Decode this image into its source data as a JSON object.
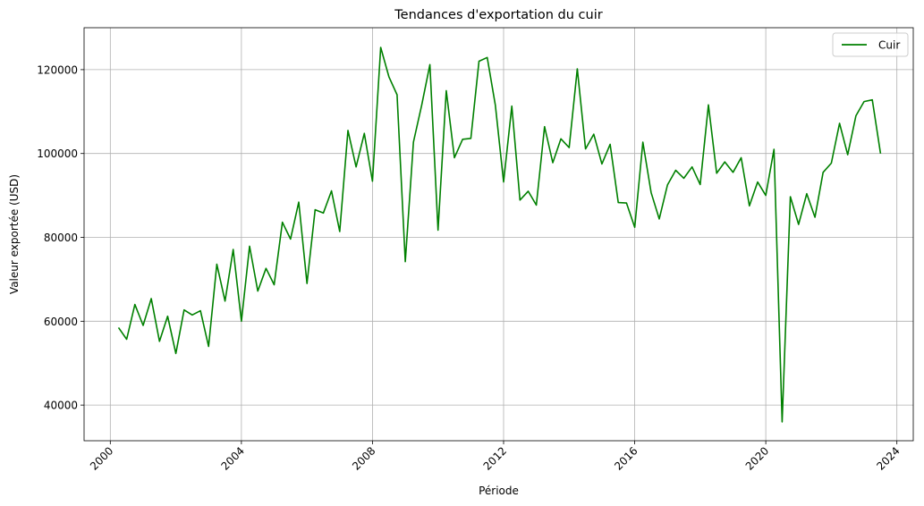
{
  "chart_data": {
    "type": "line",
    "title": "Tendances d'exportation du cuir",
    "xlabel": "Période",
    "ylabel": "Valeur exportée (USD)",
    "xlim": [
      1999.2,
      2024.5
    ],
    "ylim": [
      31500,
      130000
    ],
    "x_ticks": [
      2000,
      2004,
      2008,
      2012,
      2016,
      2020,
      2024
    ],
    "x_tick_labels": [
      "2000",
      "2004",
      "2008",
      "2012",
      "2016",
      "2020",
      "2024"
    ],
    "y_ticks": [
      40000,
      60000,
      80000,
      100000,
      120000
    ],
    "y_tick_labels": [
      "40000",
      "60000",
      "80000",
      "100000",
      "120000"
    ],
    "grid": true,
    "legend_position": "top-right",
    "series": [
      {
        "name": "Cuir",
        "color": "#008000",
        "x": [
          2000.25,
          2000.5,
          2000.75,
          2001.0,
          2001.25,
          2001.5,
          2001.75,
          2002.0,
          2002.25,
          2002.5,
          2002.75,
          2003.0,
          2003.25,
          2003.5,
          2003.75,
          2004.0,
          2004.25,
          2004.5,
          2004.75,
          2005.0,
          2005.25,
          2005.5,
          2005.75,
          2006.0,
          2006.25,
          2006.5,
          2006.75,
          2007.0,
          2007.25,
          2007.5,
          2007.75,
          2008.0,
          2008.25,
          2008.5,
          2008.75,
          2009.0,
          2009.25,
          2009.5,
          2009.75,
          2010.0,
          2010.25,
          2010.5,
          2010.75,
          2011.0,
          2011.25,
          2011.5,
          2011.75,
          2012.0,
          2012.25,
          2012.5,
          2012.75,
          2013.0,
          2013.25,
          2013.5,
          2013.75,
          2014.0,
          2014.25,
          2014.5,
          2014.75,
          2015.0,
          2015.25,
          2015.5,
          2015.75,
          2016.0,
          2016.25,
          2016.5,
          2016.75,
          2017.0,
          2017.25,
          2017.5,
          2017.75,
          2018.0,
          2018.25,
          2018.5,
          2018.75,
          2019.0,
          2019.25,
          2019.5,
          2019.75,
          2020.0,
          2020.25,
          2020.5,
          2020.75,
          2021.0,
          2021.25,
          2021.5,
          2021.75,
          2022.0,
          2022.25,
          2022.5,
          2022.75,
          2023.0,
          2023.25,
          2023.5
        ],
        "values": [
          58500,
          55700,
          64000,
          59000,
          65400,
          55200,
          61200,
          52300,
          62700,
          61500,
          62500,
          54000,
          73600,
          64800,
          77100,
          60000,
          77900,
          67200,
          72600,
          68700,
          83600,
          79600,
          88400,
          69000,
          86600,
          85800,
          91100,
          81400,
          105500,
          96800,
          104800,
          93400,
          125300,
          118300,
          114000,
          74200,
          102700,
          111500,
          121200,
          81700,
          115000,
          99000,
          103400,
          103600,
          122000,
          122900,
          111500,
          93200,
          111300,
          88900,
          91000,
          87700,
          106400,
          97800,
          103500,
          101400,
          120200,
          101100,
          104600,
          97500,
          102200,
          88300,
          88200,
          82400,
          102700,
          90700,
          84400,
          92500,
          96000,
          94100,
          96800,
          92600,
          111600,
          95300,
          98000,
          95500,
          99000,
          87500,
          93200,
          90000,
          101000,
          36000,
          89700,
          83100,
          90400,
          84800,
          95500,
          97700,
          107200,
          99700,
          109000,
          112400,
          112800,
          100000
        ]
      }
    ]
  }
}
